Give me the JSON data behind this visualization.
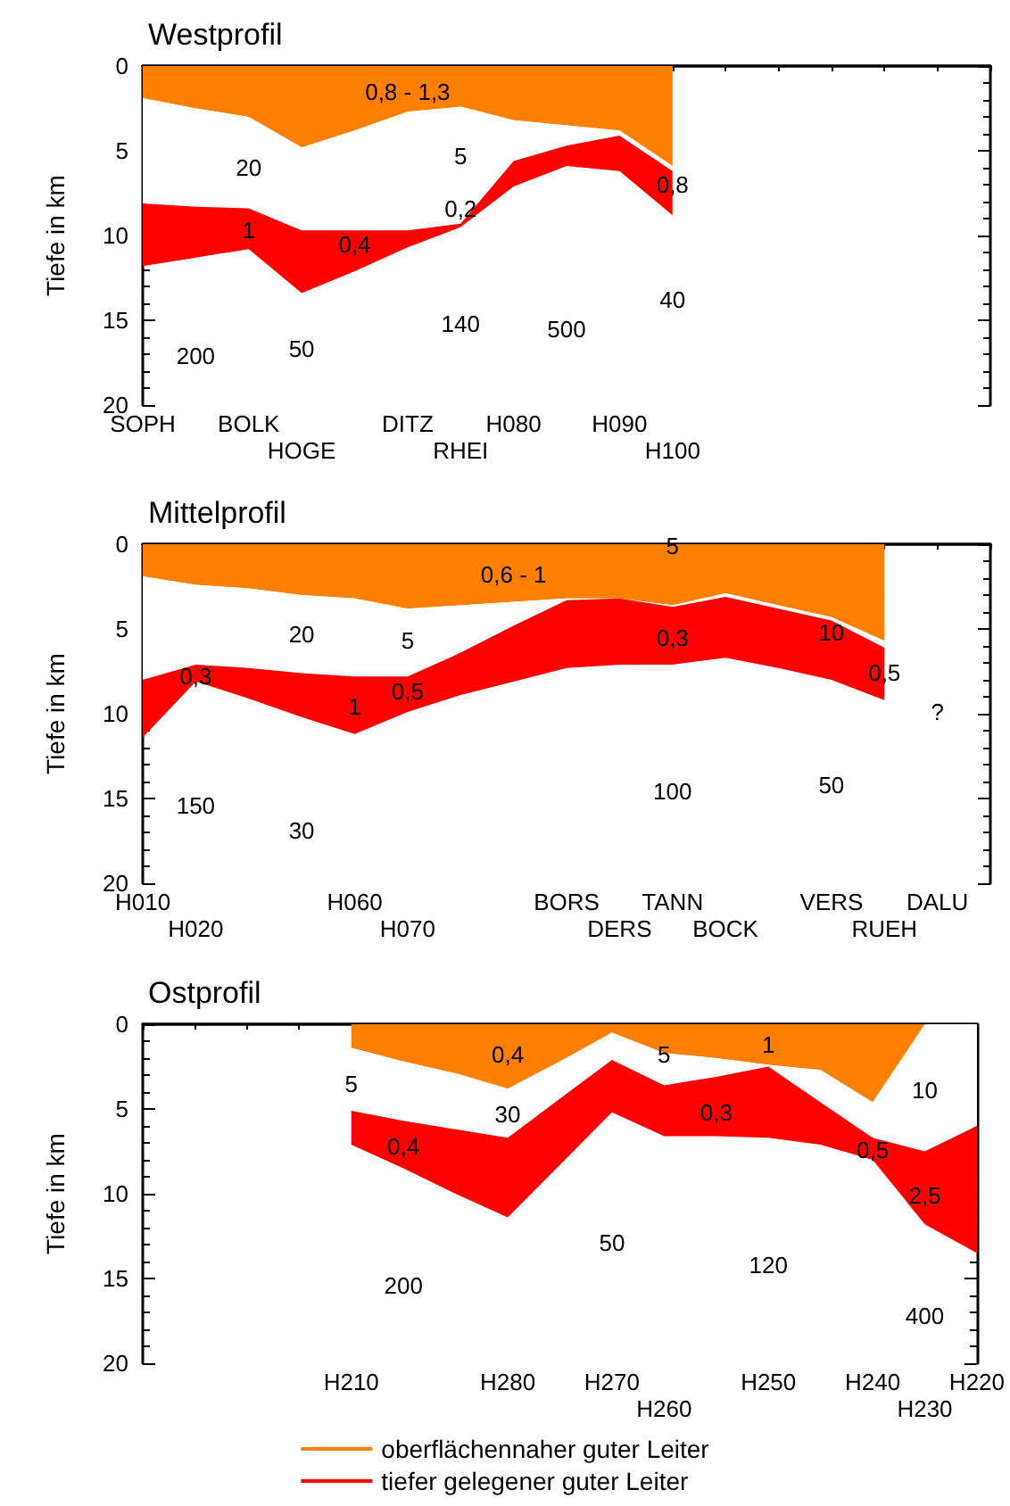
{
  "chart_data": [
    {
      "type": "area",
      "stacked": true,
      "title": "Westprofil",
      "ylabel": "Tiefe in km",
      "ylim": [
        20,
        0
      ],
      "yticks": [
        0,
        5,
        10,
        15,
        20
      ],
      "categories": [
        "SOPH",
        null,
        "BOLK",
        "HOGE",
        null,
        "DITZ",
        "RHEI",
        "H080",
        null,
        "H090",
        "H100",
        null,
        null,
        null,
        null,
        null,
        null
      ],
      "series": [
        {
          "color": "#ff8000",
          "values": [
            1.9,
            2.5,
            3.0,
            4.8,
            3.8,
            2.7,
            2.4,
            3.2,
            3.5,
            3.8,
            5.9,
            null,
            null,
            null,
            null,
            null,
            null
          ]
        },
        {
          "color": "#ffffff",
          "values": [
            6.2,
            5.8,
            5.4,
            4.9,
            5.9,
            7.0,
            6.9,
            2.4,
            1.2,
            0.3,
            0.3,
            null,
            null,
            null,
            null,
            null,
            null
          ]
        },
        {
          "color": "#ff0000",
          "values": [
            3.7,
            3.0,
            2.4,
            3.7,
            2.4,
            1.0,
            0.2,
            1.5,
            1.2,
            2.1,
            2.6,
            null,
            null,
            null,
            null,
            null,
            null
          ]
        }
      ],
      "annotations": [
        "0,8 - 1,3",
        "20",
        "5",
        "1",
        "0,2",
        "0,4",
        "0,8",
        "40",
        "140",
        "500",
        "50",
        "200"
      ]
    },
    {
      "type": "area",
      "stacked": true,
      "title": "Mittelprofil",
      "ylabel": "Tiefe in km",
      "ylim": [
        20,
        0
      ],
      "yticks": [
        0,
        5,
        10,
        15,
        20
      ],
      "categories": [
        "H010",
        "H020",
        null,
        null,
        "H060",
        "H070",
        null,
        null,
        "BORS",
        "DERS",
        "TANN",
        "BOCK",
        null,
        "VERS",
        "RUEH",
        "DALU",
        null
      ],
      "series": [
        {
          "color": "#ff8000",
          "values": [
            1.9,
            2.4,
            2.6,
            3.0,
            3.2,
            3.8,
            3.6,
            3.4,
            3.2,
            3.2,
            3.6,
            2.9,
            3.6,
            4.3,
            5.7,
            null,
            null
          ]
        },
        {
          "color": "#ffffff",
          "values": [
            6.1,
            4.7,
            4.7,
            4.6,
            4.6,
            4.0,
            2.8,
            1.4,
            0.1,
            0.0,
            0.1,
            0.2,
            0.2,
            0.2,
            0.4,
            null,
            null
          ]
        },
        {
          "color": "#ff0000",
          "values": [
            3.4,
            1.0,
            1.8,
            2.6,
            3.4,
            2.1,
            2.5,
            3.3,
            4.0,
            3.9,
            3.4,
            3.6,
            3.5,
            3.5,
            3.1,
            null,
            null
          ]
        }
      ],
      "annotations": [
        "0,6 - 1",
        "5",
        "20",
        "5",
        "0,3",
        "1",
        "0,5",
        "0,3",
        "10",
        "0,5",
        "?",
        "150",
        "30",
        "100",
        "50"
      ]
    },
    {
      "type": "area",
      "stacked": true,
      "title": "Ostprofil",
      "ylabel": "Tiefe in km",
      "ylim": [
        20,
        0
      ],
      "yticks": [
        0,
        5,
        10,
        15,
        20
      ],
      "legend": "bottom",
      "categories": [
        null,
        null,
        null,
        null,
        "H210",
        null,
        null,
        "H280",
        null,
        "H270",
        "H260",
        null,
        "H250",
        null,
        "H240",
        "H230",
        "H220"
      ],
      "series": [
        {
          "name": "oberflächennaher guter Leiter",
          "color": "#ff8000",
          "values": [
            null,
            null,
            null,
            null,
            1.4,
            2.2,
            2.9,
            3.8,
            2.2,
            0.5,
            1.7,
            2.0,
            2.4,
            2.7,
            4.6,
            0,
            0
          ]
        },
        {
          "color": "#ffffff",
          "values": [
            null,
            null,
            null,
            null,
            3.7,
            3.5,
            3.3,
            2.9,
            2.2,
            1.6,
            1.9,
            1.1,
            0.1,
            1.9,
            2.1,
            7.5,
            6.0
          ]
        },
        {
          "name": "tiefer gelegener guter Leiter",
          "color": "#ff0000",
          "values": [
            null,
            null,
            null,
            null,
            2.0,
            2.8,
            3.8,
            4.7,
            3.9,
            3.1,
            3.0,
            3.5,
            4.2,
            2.5,
            1.3,
            4.3,
            7.5
          ]
        }
      ],
      "annotations": [
        "0,4",
        "5",
        "1",
        "5",
        "30",
        "0,4",
        "0,3",
        "0,5",
        "10",
        "2,5",
        "50",
        "120",
        "200",
        "400"
      ]
    }
  ]
}
